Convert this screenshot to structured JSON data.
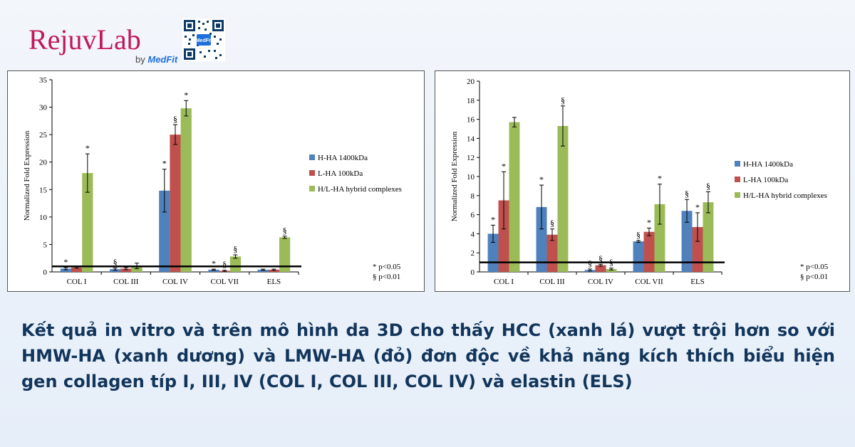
{
  "brand": {
    "name": "RejuvLab",
    "byline_prefix": "by",
    "byline_brand": "MedFit",
    "qr_label": "MedFit"
  },
  "colors": {
    "series": [
      "#4f81bd",
      "#c0504d",
      "#9bbb59"
    ],
    "caption": "#12355b",
    "brand": "#c2185b"
  },
  "caption": "Kết quả in vitro và trên mô hình da 3D cho thấy HCC (xanh lá) vượt trội hơn so với HMW-HA (xanh dương) và LMW-HA (đỏ) đơn độc về khả năng kích thích biểu hiện gen collagen típ I, III, IV (COL I, COL III, COL IV) và elastin (ELS)",
  "chart_data": [
    {
      "type": "bar",
      "ylabel": "Normalized Fold Expression",
      "ylim": [
        0,
        35
      ],
      "yticks": [
        0,
        5,
        10,
        15,
        20,
        25,
        30,
        35
      ],
      "categories": [
        "COL I",
        "COL III",
        "COL IV",
        "COL VII",
        "ELS"
      ],
      "baseline": 1,
      "legend_position": "right",
      "series": [
        {
          "name": "H-HA 1400kDa",
          "values": [
            0.6,
            0.5,
            14.8,
            0.4,
            0.4
          ],
          "errors": [
            0.2,
            0.2,
            3.9,
            0.1,
            0.1
          ],
          "marks": [
            "*",
            "§",
            "*",
            "*",
            ""
          ]
        },
        {
          "name": "L-HA 100kDa",
          "values": [
            0.8,
            0.6,
            25.0,
            0.2,
            0.4
          ],
          "errors": [
            0.1,
            0.2,
            1.8,
            0.1,
            0.1
          ],
          "marks": [
            "",
            "",
            "§",
            "§",
            ""
          ]
        },
        {
          "name": "H/L-HA hybrid complexes",
          "values": [
            18.0,
            1.1,
            29.8,
            2.8,
            6.3
          ],
          "errors": [
            3.5,
            0.5,
            1.4,
            0.3,
            0.2
          ],
          "marks": [
            "*",
            "",
            "*",
            "§",
            "§"
          ]
        }
      ],
      "notes": [
        "* p<0.05",
        "§ p<0.01"
      ]
    },
    {
      "type": "bar",
      "ylabel": "Normalized Fold Expression",
      "ylim": [
        0,
        20
      ],
      "yticks": [
        0,
        2,
        4,
        6,
        8,
        10,
        12,
        14,
        16,
        18,
        20
      ],
      "categories": [
        "COL I",
        "COL III",
        "COL IV",
        "COL VII",
        "ELS"
      ],
      "baseline": 1,
      "legend_position": "right",
      "series": [
        {
          "name": "H-HA 1400kDa",
          "values": [
            4.0,
            6.8,
            0.2,
            3.2,
            6.4
          ],
          "errors": [
            0.9,
            2.3,
            0.1,
            0.1,
            1.2
          ],
          "marks": [
            "*",
            "*",
            "§",
            "§",
            "§"
          ]
        },
        {
          "name": "L-HA 100kDa",
          "values": [
            7.5,
            3.9,
            0.7,
            4.2,
            4.7
          ],
          "errors": [
            3.0,
            0.6,
            0.1,
            0.4,
            1.5
          ],
          "marks": [
            "*",
            "§",
            "§",
            "*",
            "*"
          ]
        },
        {
          "name": "H/L-HA hybrid complexes",
          "values": [
            15.7,
            15.3,
            0.3,
            7.1,
            7.3
          ],
          "errors": [
            0.5,
            2.1,
            0.1,
            2.1,
            1.1
          ],
          "marks": [
            "",
            "§",
            "§",
            "*",
            "§"
          ]
        }
      ],
      "notes": [
        "* p<0.05",
        "§ p<0.01"
      ]
    }
  ]
}
